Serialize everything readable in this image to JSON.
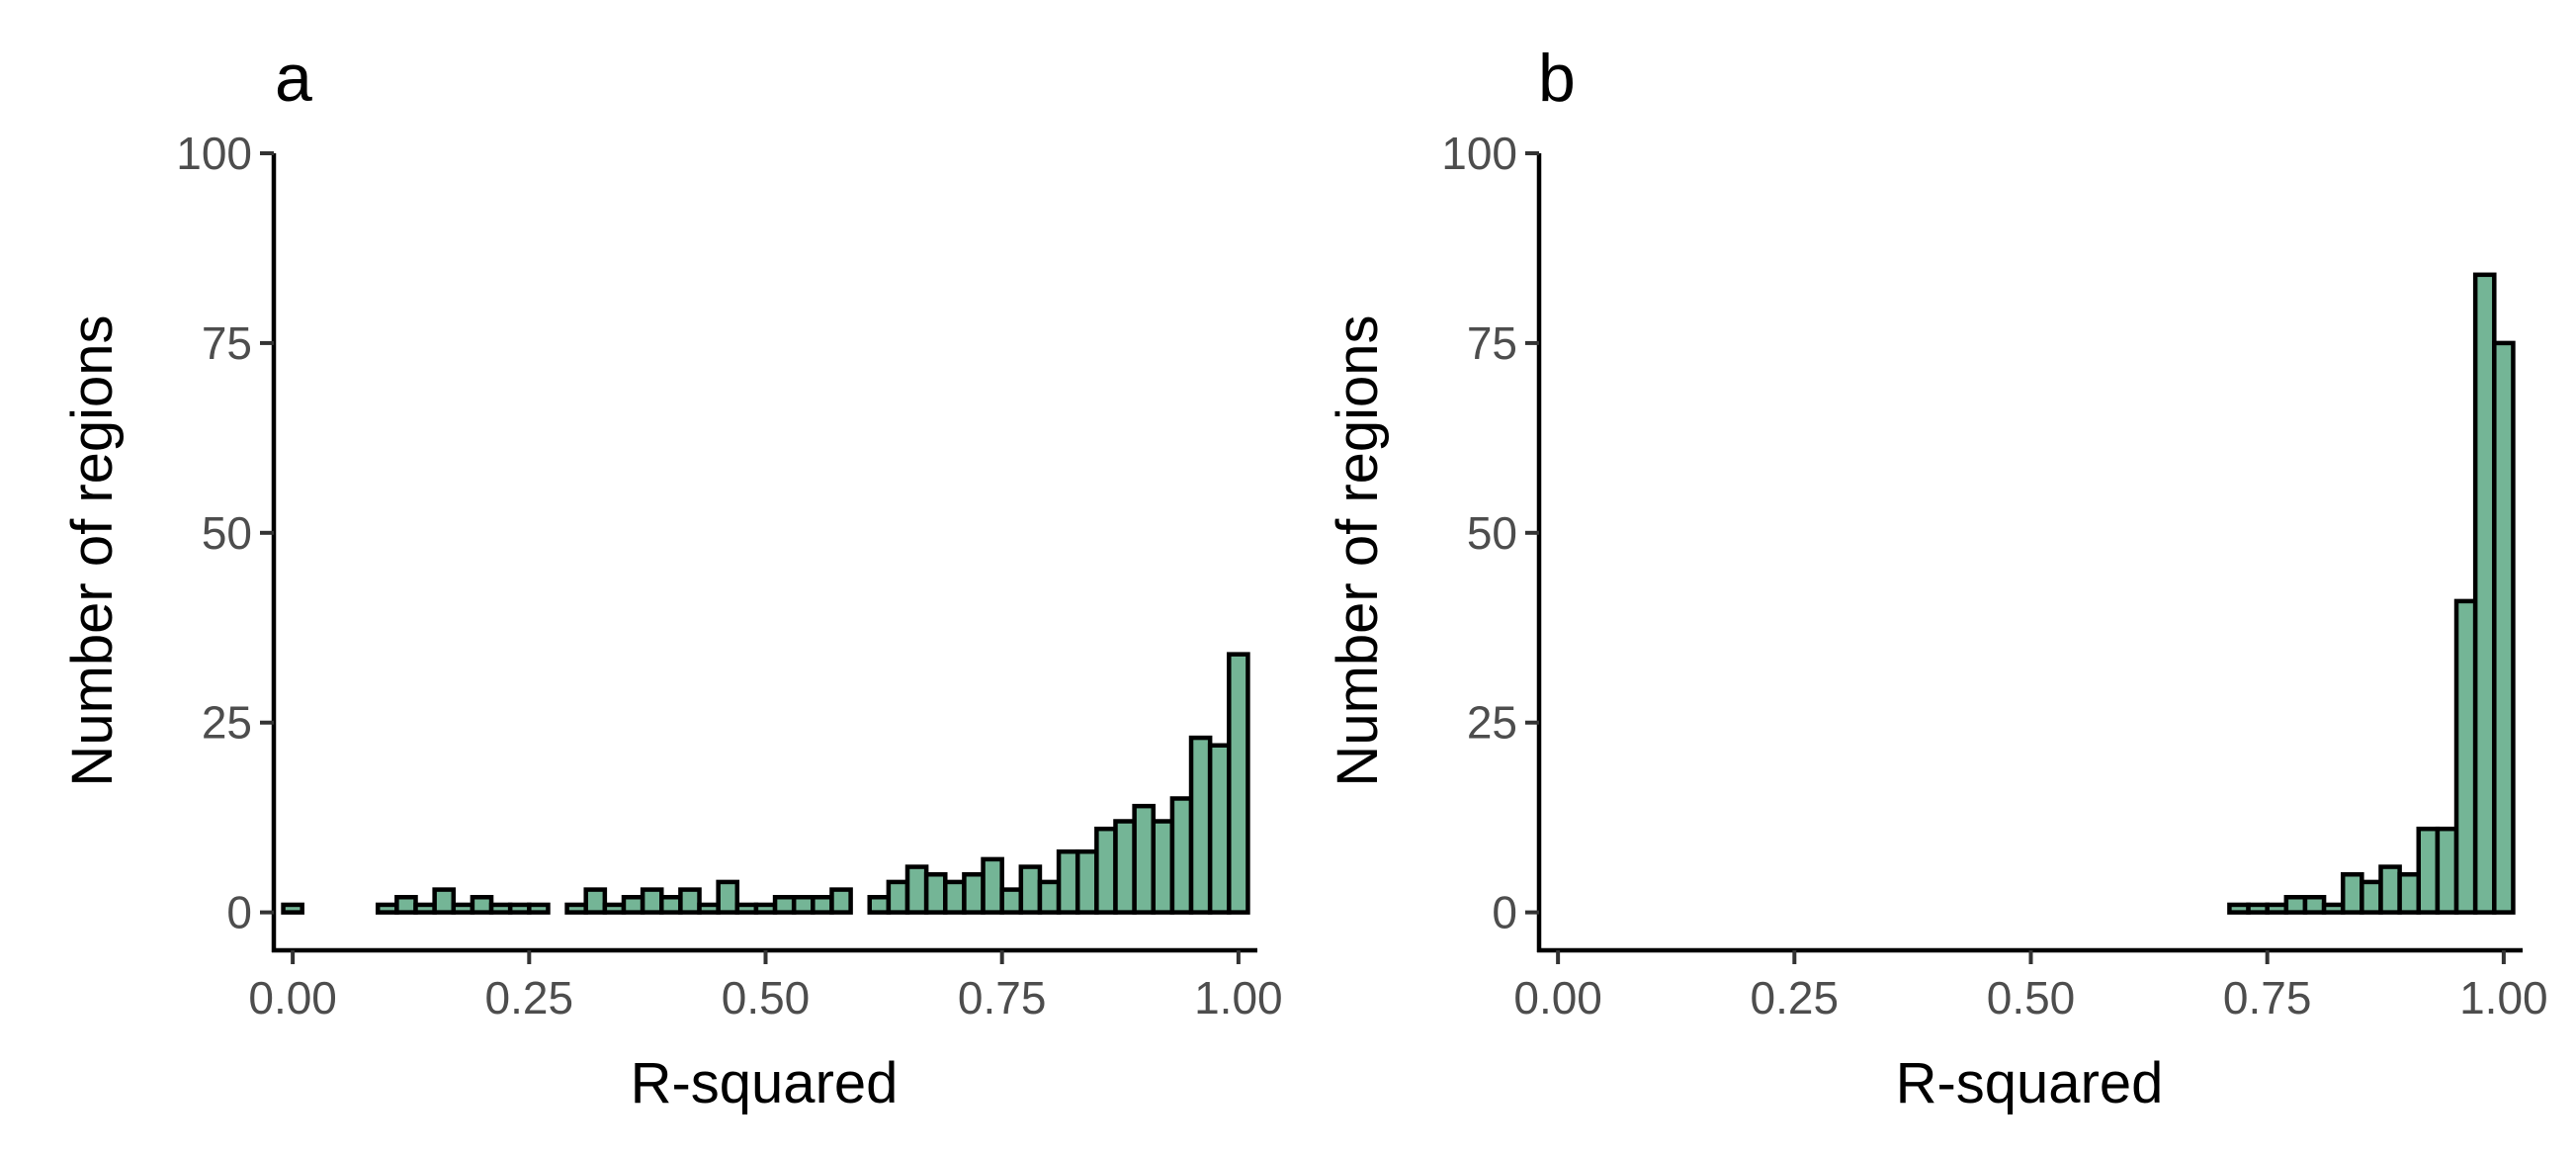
{
  "colors": {
    "bar_fill": "#74b596",
    "bar_stroke": "#000000",
    "axis": "#000000",
    "tick_text": "#4d4d4d"
  },
  "chart_data": [
    {
      "type": "bar",
      "panel_label": "a",
      "title": "",
      "xlabel": "R-squared",
      "ylabel": "Number of regions",
      "xlim": [
        -0.02,
        1.02
      ],
      "ylim": [
        -5,
        100
      ],
      "bin_width": 0.02,
      "x_ticks": [
        0.0,
        0.25,
        0.5,
        0.75,
        1.0
      ],
      "x_tick_labels": [
        "0.00",
        "0.25",
        "0.50",
        "0.75",
        "1.00"
      ],
      "y_ticks": [
        0,
        25,
        50,
        75,
        100
      ],
      "y_tick_labels": [
        "0",
        "25",
        "50",
        "75",
        "100"
      ],
      "grid": false,
      "legend": "none",
      "bin_centers": [
        0.0,
        0.02,
        0.04,
        0.06,
        0.08,
        0.1,
        0.12,
        0.14,
        0.16,
        0.18,
        0.2,
        0.22,
        0.24,
        0.26,
        0.28,
        0.3,
        0.32,
        0.34,
        0.36,
        0.38,
        0.4,
        0.42,
        0.44,
        0.46,
        0.48,
        0.5,
        0.52,
        0.54,
        0.56,
        0.58,
        0.6,
        0.62,
        0.64,
        0.66,
        0.68,
        0.7,
        0.72,
        0.74,
        0.76,
        0.78,
        0.8,
        0.82,
        0.84,
        0.86,
        0.88,
        0.9,
        0.92,
        0.94,
        0.96,
        0.98,
        1.0
      ],
      "values": [
        1,
        0,
        0,
        0,
        0,
        1,
        2,
        1,
        3,
        1,
        2,
        1,
        1,
        1,
        0,
        1,
        3,
        1,
        2,
        3,
        2,
        3,
        1,
        4,
        1,
        1,
        2,
        2,
        2,
        3,
        0,
        2,
        4,
        6,
        5,
        4,
        5,
        7,
        3,
        6,
        4,
        8,
        8,
        11,
        12,
        14,
        12,
        15,
        23,
        22,
        34
      ]
    },
    {
      "type": "bar",
      "panel_label": "b",
      "title": "",
      "xlabel": "R-squared",
      "ylabel": "Number of regions",
      "xlim": [
        -0.02,
        1.02
      ],
      "ylim": [
        -5,
        100
      ],
      "bin_width": 0.02,
      "x_ticks": [
        0.0,
        0.25,
        0.5,
        0.75,
        1.0
      ],
      "x_tick_labels": [
        "0.00",
        "0.25",
        "0.50",
        "0.75",
        "1.00"
      ],
      "y_ticks": [
        0,
        25,
        50,
        75,
        100
      ],
      "y_tick_labels": [
        "0",
        "25",
        "50",
        "75",
        "100"
      ],
      "grid": false,
      "legend": "none",
      "bin_centers": [
        0.72,
        0.74,
        0.76,
        0.78,
        0.8,
        0.82,
        0.84,
        0.86,
        0.88,
        0.9,
        0.92,
        0.94,
        0.96,
        0.98,
        1.0
      ],
      "values": [
        1,
        1,
        1,
        2,
        2,
        1,
        5,
        4,
        6,
        5,
        11,
        11,
        41,
        84,
        75
      ]
    }
  ]
}
